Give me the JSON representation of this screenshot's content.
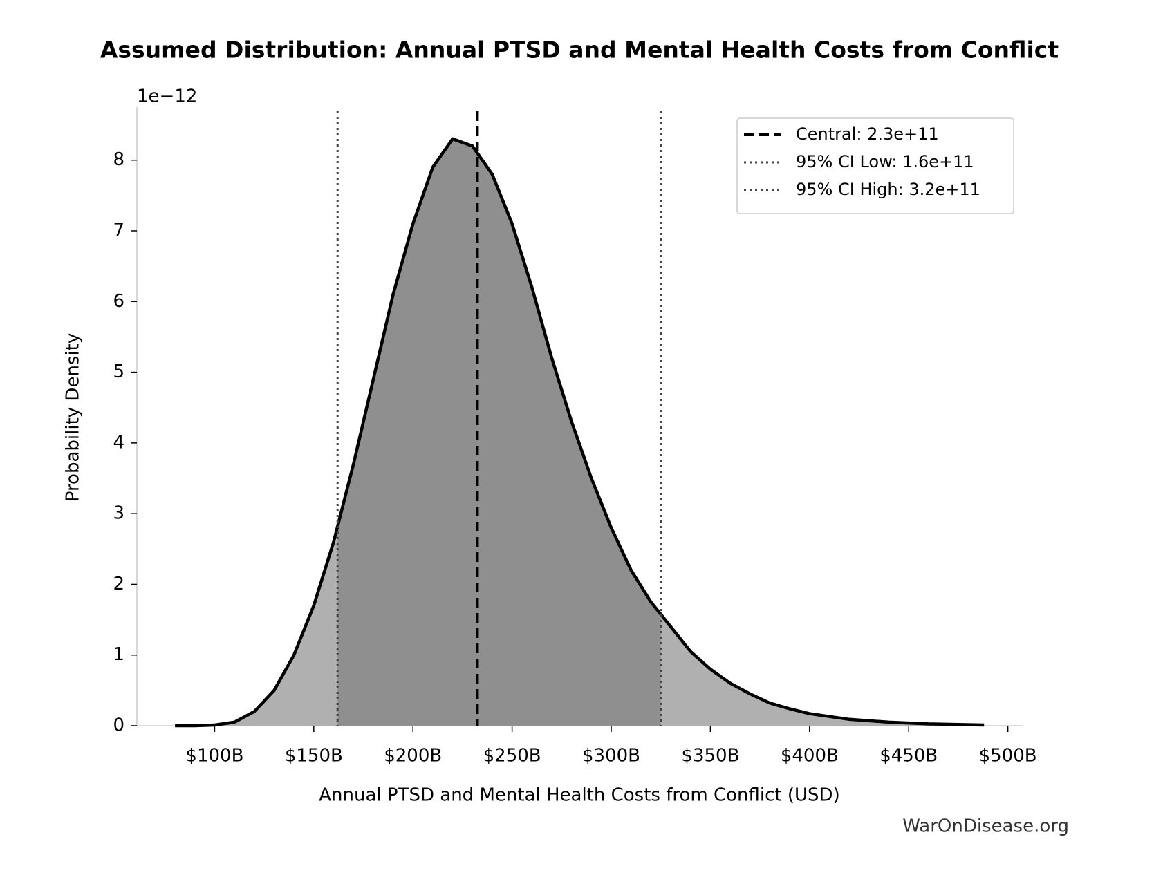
{
  "chart_data": {
    "type": "area",
    "title": "Assumed Distribution: Annual PTSD and Mental Health Costs from Conflict",
    "x_label": "Annual PTSD and Mental Health Costs from Conflict (USD)",
    "y_label": "Probability Density",
    "y_offset_label": "1e−12",
    "watermark": "WarOnDisease.org",
    "x": [
      80,
      90,
      100,
      110,
      120,
      130,
      140,
      150,
      160,
      170,
      180,
      190,
      200,
      210,
      220,
      230,
      240,
      250,
      260,
      270,
      280,
      290,
      300,
      310,
      320,
      330,
      340,
      350,
      360,
      370,
      380,
      390,
      400,
      420,
      440,
      460,
      488
    ],
    "series": [
      {
        "color": "#000000",
        "fill": "#b0b0b0",
        "ci_fill": "#8f8f8f",
        "values": [
          0.0,
          0.0,
          0.01,
          0.05,
          0.2,
          0.5,
          1.0,
          1.7,
          2.6,
          3.7,
          4.9,
          6.1,
          7.1,
          7.9,
          8.3,
          8.2,
          7.8,
          7.1,
          6.2,
          5.2,
          4.3,
          3.5,
          2.8,
          2.2,
          1.75,
          1.4,
          1.05,
          0.8,
          0.6,
          0.45,
          0.32,
          0.24,
          0.17,
          0.09,
          0.05,
          0.025,
          0.01
        ]
      }
    ],
    "reference_lines": [
      {
        "x": 232.5,
        "label": "Central: 2.3e+11",
        "style": "dashed",
        "color": "#000000"
      },
      {
        "x": 162,
        "label": "95% CI Low: 1.6e+11",
        "style": "dotted",
        "color": "#444444"
      },
      {
        "x": 325,
        "label": "95% CI High: 3.2e+11",
        "style": "dotted",
        "color": "#444444"
      }
    ],
    "xlim": [
      60.8,
      507.8
    ],
    "ylim": [
      0,
      8.75
    ],
    "xticks": [
      {
        "value": 100,
        "label": "$100B"
      },
      {
        "value": 150,
        "label": "$150B"
      },
      {
        "value": 200,
        "label": "$200B"
      },
      {
        "value": 250,
        "label": "$250B"
      },
      {
        "value": 300,
        "label": "$300B"
      },
      {
        "value": 350,
        "label": "$350B"
      },
      {
        "value": 400,
        "label": "$400B"
      },
      {
        "value": 450,
        "label": "$450B"
      },
      {
        "value": 500,
        "label": "$500B"
      }
    ],
    "yticks": [
      0,
      1,
      2,
      3,
      4,
      5,
      6,
      7,
      8
    ],
    "legend": "upper right",
    "grid": false
  }
}
